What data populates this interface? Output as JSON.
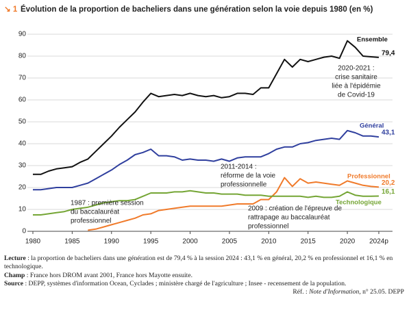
{
  "chart_data": {
    "type": "line",
    "figure_label": "↘ 1",
    "title": "Évolution de la proportion de bacheliers dans une génération selon la voie depuis 1980 (en %)",
    "x": [
      1980,
      1981,
      1982,
      1983,
      1984,
      1985,
      1986,
      1987,
      1988,
      1989,
      1990,
      1991,
      1992,
      1993,
      1994,
      1995,
      1996,
      1997,
      1998,
      1999,
      2000,
      2001,
      2002,
      2003,
      2004,
      2005,
      2006,
      2007,
      2008,
      2009,
      2010,
      2011,
      2012,
      2013,
      2014,
      2015,
      2016,
      2017,
      2018,
      2019,
      2020,
      2021,
      2022,
      2023,
      2024
    ],
    "xlim": [
      1980,
      2024
    ],
    "xticks": [
      1980,
      1985,
      1990,
      1995,
      2000,
      2005,
      2010,
      2015,
      2020,
      {
        "value": 2024,
        "label": "2024p"
      }
    ],
    "ylim": [
      0,
      90
    ],
    "yticks": [
      0,
      10,
      20,
      30,
      40,
      50,
      60,
      70,
      80,
      90
    ],
    "grid": true,
    "series": [
      {
        "name": "Ensemble",
        "color": "#111111",
        "values": [
          26,
          26,
          27.5,
          28.5,
          29,
          29.5,
          31.5,
          33,
          36.5,
          40,
          43.5,
          47.5,
          51,
          54.5,
          59,
          63,
          61.5,
          62,
          62.5,
          62,
          63,
          62,
          61.5,
          62,
          61,
          61.5,
          63,
          63,
          62.5,
          65.5,
          65.5,
          72,
          78.5,
          75,
          78.5,
          77.5,
          78.5,
          79.5,
          80,
          79,
          87,
          84,
          80,
          79.7,
          79.4
        ],
        "value_labels": [
          null,
          null,
          null,
          null,
          null,
          null,
          null,
          null,
          null,
          null,
          null,
          null,
          null,
          null,
          null,
          null,
          null,
          null,
          null,
          null,
          null,
          null,
          null,
          null,
          null,
          null,
          null,
          null,
          null,
          null,
          null,
          null,
          null,
          null,
          null,
          null,
          null,
          null,
          null,
          null,
          null,
          null,
          null,
          null,
          "79,4"
        ]
      },
      {
        "name": "Général",
        "color": "#2f3f9e",
        "values": [
          19,
          19,
          19.5,
          20,
          20,
          20,
          21,
          22,
          24,
          26,
          28,
          30.5,
          32.5,
          35,
          36,
          37.5,
          34.5,
          34.5,
          34,
          32.5,
          33,
          32.5,
          32.5,
          32,
          33,
          32,
          33.5,
          34,
          34,
          34,
          35.5,
          37.5,
          38.5,
          38.5,
          40,
          40.5,
          41.5,
          42,
          42.5,
          42,
          46,
          45,
          43.5,
          43.5,
          43.1
        ],
        "value_labels": [
          null,
          null,
          null,
          null,
          null,
          null,
          null,
          null,
          null,
          null,
          null,
          null,
          null,
          null,
          null,
          null,
          null,
          null,
          null,
          null,
          null,
          null,
          null,
          null,
          null,
          null,
          null,
          null,
          null,
          null,
          null,
          null,
          null,
          null,
          null,
          null,
          null,
          null,
          null,
          null,
          null,
          null,
          null,
          null,
          "43,1"
        ]
      },
      {
        "name": "Professionnel",
        "color": "#f07a2a",
        "values": [
          null,
          null,
          null,
          null,
          null,
          null,
          null,
          0.5,
          1,
          2,
          3,
          4,
          5,
          6,
          7.5,
          8,
          9.5,
          10,
          10.5,
          11,
          11.5,
          11.5,
          11.5,
          11.5,
          11.5,
          12,
          12.5,
          12.5,
          12.5,
          14.5,
          14.5,
          18,
          24.5,
          20.5,
          24,
          22,
          22.5,
          22,
          21.5,
          21,
          23,
          22,
          21,
          20.5,
          20.2
        ],
        "value_labels": [
          null,
          null,
          null,
          null,
          null,
          null,
          null,
          null,
          null,
          null,
          null,
          null,
          null,
          null,
          null,
          null,
          null,
          null,
          null,
          null,
          null,
          null,
          null,
          null,
          null,
          null,
          null,
          null,
          null,
          null,
          null,
          null,
          null,
          null,
          null,
          null,
          null,
          null,
          null,
          null,
          null,
          null,
          null,
          null,
          "20,2"
        ]
      },
      {
        "name": "Technologique",
        "color": "#74a534",
        "values": [
          7.5,
          7.5,
          8,
          8.5,
          9,
          10,
          10.5,
          11,
          12,
          13,
          13.5,
          14,
          14,
          14.5,
          16,
          17.5,
          17.5,
          17.5,
          18,
          18,
          18.5,
          18,
          17.5,
          17.5,
          17,
          17,
          17,
          16.5,
          16.5,
          16.5,
          16,
          16,
          16,
          16,
          16,
          15.5,
          16,
          15.5,
          15.5,
          16,
          18,
          16.5,
          16,
          16,
          16.1
        ],
        "value_labels": [
          null,
          null,
          null,
          null,
          null,
          null,
          null,
          null,
          null,
          null,
          null,
          null,
          null,
          null,
          null,
          null,
          null,
          null,
          null,
          null,
          null,
          null,
          null,
          null,
          null,
          null,
          null,
          null,
          null,
          null,
          null,
          null,
          null,
          null,
          null,
          null,
          null,
          null,
          null,
          null,
          null,
          null,
          null,
          null,
          "16,1"
        ]
      }
    ],
    "annotations": [
      {
        "lines": [
          "2020-2021 :",
          "crise sanitaire",
          "liée à l'épidémie",
          "de Covid-19"
        ]
      },
      {
        "lines": [
          "2011-2014 :",
          "réforme de la voie",
          "professionnelle"
        ]
      },
      {
        "lines": [
          "1987 : première session",
          "du baccalauréat",
          "professionnel"
        ]
      },
      {
        "lines": [
          "2009 : création de l'épreuve de",
          "rattrapage au baccalauréat",
          "professionnel"
        ]
      }
    ]
  },
  "notes": [
    {
      "label": "Lecture",
      "text": " : la proportion de bacheliers dans une génération est de 79,4 % à la session 2024 : 43,1 % en général, 20,2 % en professionnel et 16,1 % en technologique."
    },
    {
      "label": "Champ",
      "text": " : France hors DROM avant 2001, France hors Mayotte ensuite."
    },
    {
      "label": "Source",
      "text": " : DEPP, systèmes d'information Ocean, Cyclades ; ministère chargé de l'agriculture ; Insee - recensement de la population."
    }
  ],
  "reference": {
    "prefix": "Réf. : ",
    "italic": "Note d'Information",
    "suffix": ", n° 25.05. DEPP"
  }
}
